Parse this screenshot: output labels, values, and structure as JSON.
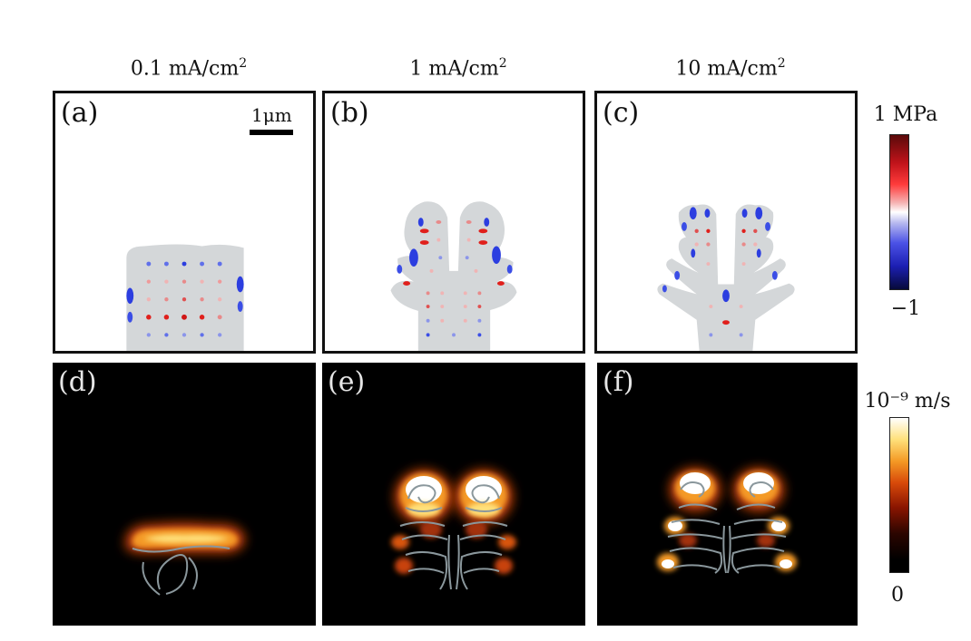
{
  "columns": [
    {
      "value": "0.1",
      "unit": "mA/cm",
      "exp": "2"
    },
    {
      "value": "1",
      "unit": "mA/cm",
      "exp": "2"
    },
    {
      "value": "10",
      "unit": "mA/cm",
      "exp": "2"
    }
  ],
  "panels": {
    "a": "(a)",
    "b": "(b)",
    "c": "(c)",
    "d": "(d)",
    "e": "(e)",
    "f": "(f)"
  },
  "scale_bar": {
    "label": "1μm"
  },
  "stress_colorbar": {
    "top_label": "1 MPa",
    "bottom_label": "−1"
  },
  "velocity_colorbar": {
    "top_label": "10⁻⁹ m/s",
    "bottom_label": "0"
  },
  "colors": {
    "deposit": "#d4d7d9",
    "tension": "#e0201c",
    "compression": "#2c3ee0",
    "streamline": "#8a979c",
    "flow_glow": "#f08a1c"
  }
}
